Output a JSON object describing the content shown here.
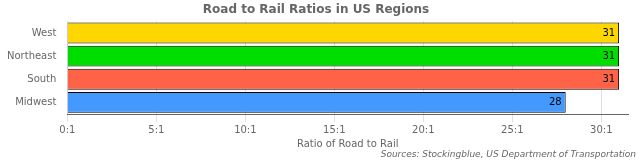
{
  "chart_data": {
    "type": "bar",
    "orientation": "horizontal",
    "title": "Road to Rail Ratios in US Regions",
    "categories": [
      "West",
      "Northeast",
      "South",
      "Midwest"
    ],
    "values": [
      31,
      31,
      31,
      28
    ],
    "colors": [
      "#FFD700",
      "#00DD00",
      "#FF6347",
      "#4499FF"
    ],
    "xlabel": "Ratio of Road to Rail",
    "xlim": [
      0,
      31.5
    ],
    "xticks": [
      {
        "value": 0,
        "label": "0:1"
      },
      {
        "value": 5,
        "label": "5:1"
      },
      {
        "value": 10,
        "label": "10:1"
      },
      {
        "value": 15,
        "label": "15:1"
      },
      {
        "value": 20,
        "label": "20:1"
      },
      {
        "value": 25,
        "label": "25:1"
      },
      {
        "value": 30,
        "label": "30:1"
      }
    ],
    "grid": true,
    "data_labels": true,
    "annotation": "Sources: Stockingblue, US Department of Transportation"
  }
}
